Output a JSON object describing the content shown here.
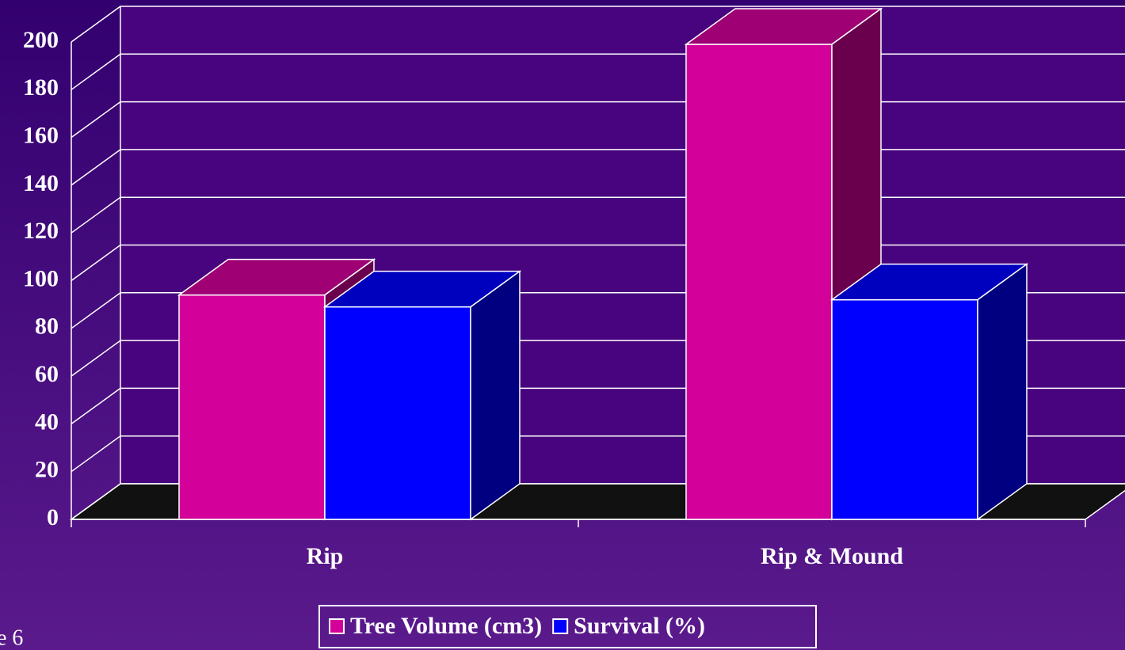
{
  "chart_data": {
    "type": "bar3d",
    "categories": [
      "Rip",
      "Rip & Mound"
    ],
    "series": [
      {
        "name": "Tree Volume (cm3)",
        "color": "#d4009a",
        "values": [
          94,
          199
        ]
      },
      {
        "name": "Survival (%)",
        "color": "#0000ff",
        "values": [
          89,
          92
        ]
      }
    ],
    "ylim": [
      0,
      200
    ],
    "yticks": [
      0,
      20,
      40,
      60,
      80,
      100,
      120,
      140,
      160,
      180,
      200
    ],
    "grid": true,
    "legend": "bottom"
  },
  "slide_label": "e 6"
}
